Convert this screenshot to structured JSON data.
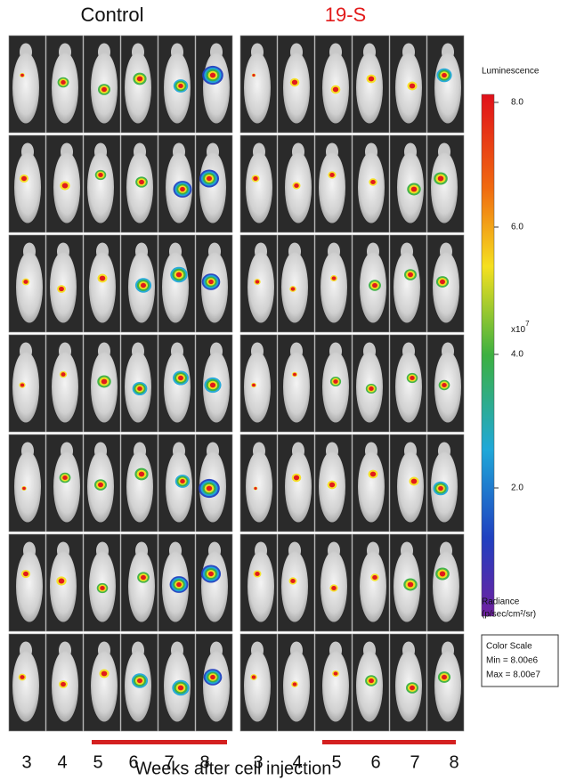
{
  "header": {
    "left_title": "Control",
    "right_title": "19-S"
  },
  "week_labels": {
    "left": [
      "3",
      "4",
      "5",
      "6",
      "7",
      "8"
    ],
    "right": [
      "3",
      "4",
      "5",
      "6",
      "7",
      "8"
    ]
  },
  "x_axis_title": "Weeks after cell injection",
  "color_scale": {
    "title": "Luminescence",
    "ticks": [
      "8.0",
      "6.0",
      "4.0",
      "2.0"
    ],
    "multiplier": "x10",
    "multiplier_exponent": "7",
    "unit_lines": [
      "Radiance",
      "(p/sec/cm²/sr)"
    ],
    "box_lines": [
      "Color Scale",
      "Min = 8.00e6",
      "Max = 8.00e7"
    ]
  }
}
